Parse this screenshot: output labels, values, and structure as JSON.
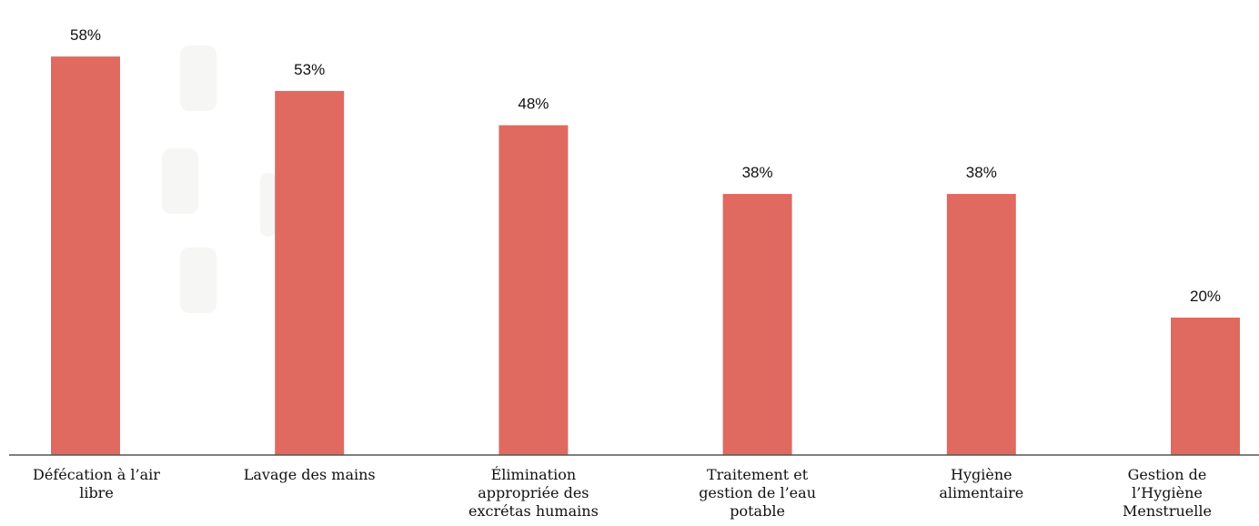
{
  "chart_data": {
    "type": "bar",
    "categories": [
      "Défécation à l’air\nlibre",
      "Lavage des mains",
      "Élimination\nappropriée des\nexcrétas humains",
      "Traitement et\ngestion de l’eau\npotable",
      "Hygiène\nalimentaire",
      "Gestion de\nl’Hygiène\nMenstruelle"
    ],
    "values": [
      58,
      53,
      48,
      38,
      38,
      20
    ],
    "value_labels": [
      "58%",
      "53%",
      "48%",
      "38%",
      "38%",
      "20%"
    ],
    "ylim": [
      0,
      60
    ],
    "bar_color": "#e06a5f",
    "axis_color": "#555555",
    "grid": false
  }
}
